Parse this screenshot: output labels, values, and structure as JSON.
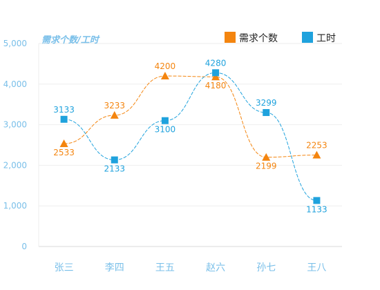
{
  "chart_data": {
    "type": "line",
    "categories": [
      "张三",
      "李四",
      "王五",
      "赵六",
      "孙七",
      "王八"
    ],
    "ylabel": "需求个数/工时",
    "ylim": [
      0,
      5000
    ],
    "yticks": [
      "0",
      "1,000",
      "2,000",
      "3,000",
      "4,000",
      "5,000"
    ],
    "yticks_values": [
      0,
      1000,
      2000,
      3000,
      4000,
      5000
    ],
    "grid": true,
    "legend_position": "top-right",
    "series": [
      {
        "name": "需求个数",
        "values": [
          2533,
          3233,
          4200,
          4180,
          2199,
          2253
        ],
        "labels": [
          "2533",
          "3233",
          "4200",
          "4180",
          "2199",
          "2253"
        ],
        "color": "#f4850f",
        "marker": "triangle"
      },
      {
        "name": "工时",
        "values": [
          3133,
          2133,
          3100,
          4280,
          3299,
          1133
        ],
        "labels": [
          "3133",
          "2133",
          "3100",
          "4280",
          "3299",
          "1133"
        ],
        "color": "#1fa2dd",
        "marker": "square"
      }
    ]
  }
}
